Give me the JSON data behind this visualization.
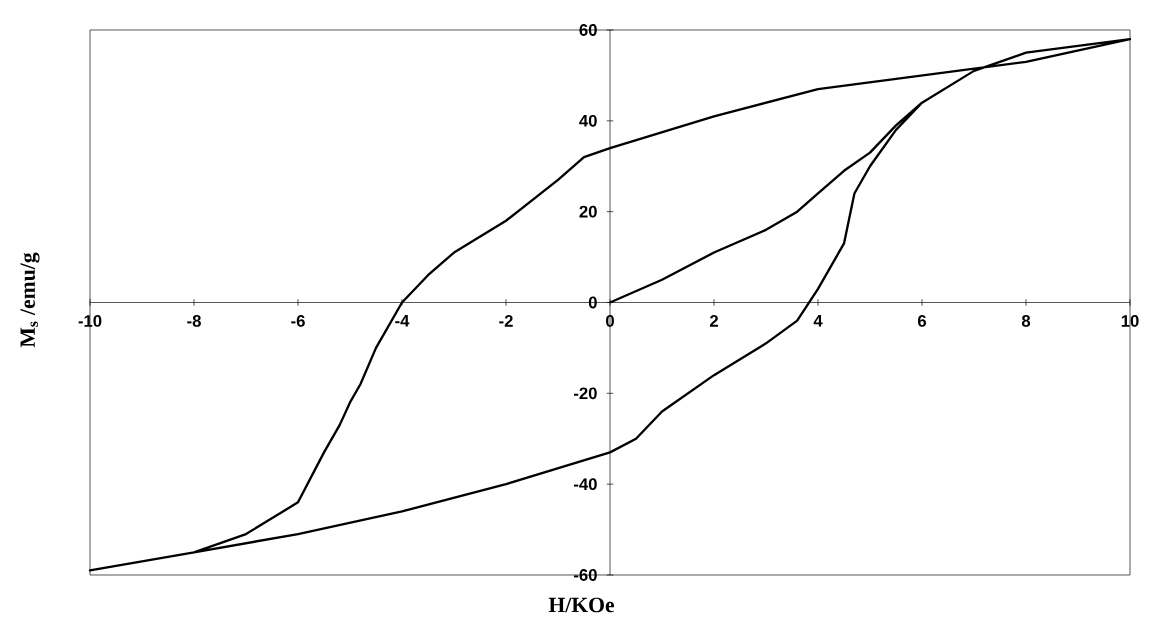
{
  "chart_data": {
    "type": "line",
    "xlabel": "H/KOe",
    "ylabel": "M$_{s}$ /emu/g",
    "xlim": [
      -10,
      10
    ],
    "ylim": [
      -60,
      60
    ],
    "xticks": [
      -10,
      -8,
      -6,
      -4,
      -2,
      0,
      2,
      4,
      6,
      8,
      10
    ],
    "yticks": [
      -60,
      -40,
      -20,
      0,
      20,
      40,
      60
    ],
    "grid": false,
    "marker": "none",
    "line_style": "solid",
    "series": [
      {
        "color": "#000000",
        "x": [
          0,
          1,
          2,
          3,
          3.6,
          4,
          4.5,
          5,
          5.5,
          6,
          7,
          8,
          10,
          8,
          4,
          2,
          0,
          -0.5,
          -1,
          -2,
          -3,
          -3.5,
          -4,
          -4.5,
          -4.8,
          -5,
          -5.2,
          -5.5,
          -6,
          -7,
          -8,
          -10,
          -8,
          -6,
          -4,
          -2,
          0,
          0.5,
          1,
          2,
          3,
          3.6,
          4,
          4.5,
          4.7,
          5,
          5.5,
          6,
          7,
          8,
          10
        ],
        "values": [
          0,
          5,
          11,
          16,
          20,
          24,
          29,
          33,
          39,
          44,
          51,
          55,
          58,
          53,
          47,
          41,
          34,
          32,
          27,
          18,
          11,
          6,
          0,
          -10,
          -18,
          -22,
          -27,
          -33,
          -44,
          -51,
          -55,
          -59,
          -55,
          -51,
          -46,
          -40,
          -33,
          -30,
          -24,
          -16,
          -9,
          -4,
          3,
          13,
          24,
          30,
          38,
          44,
          51,
          55,
          58
        ]
      }
    ]
  }
}
